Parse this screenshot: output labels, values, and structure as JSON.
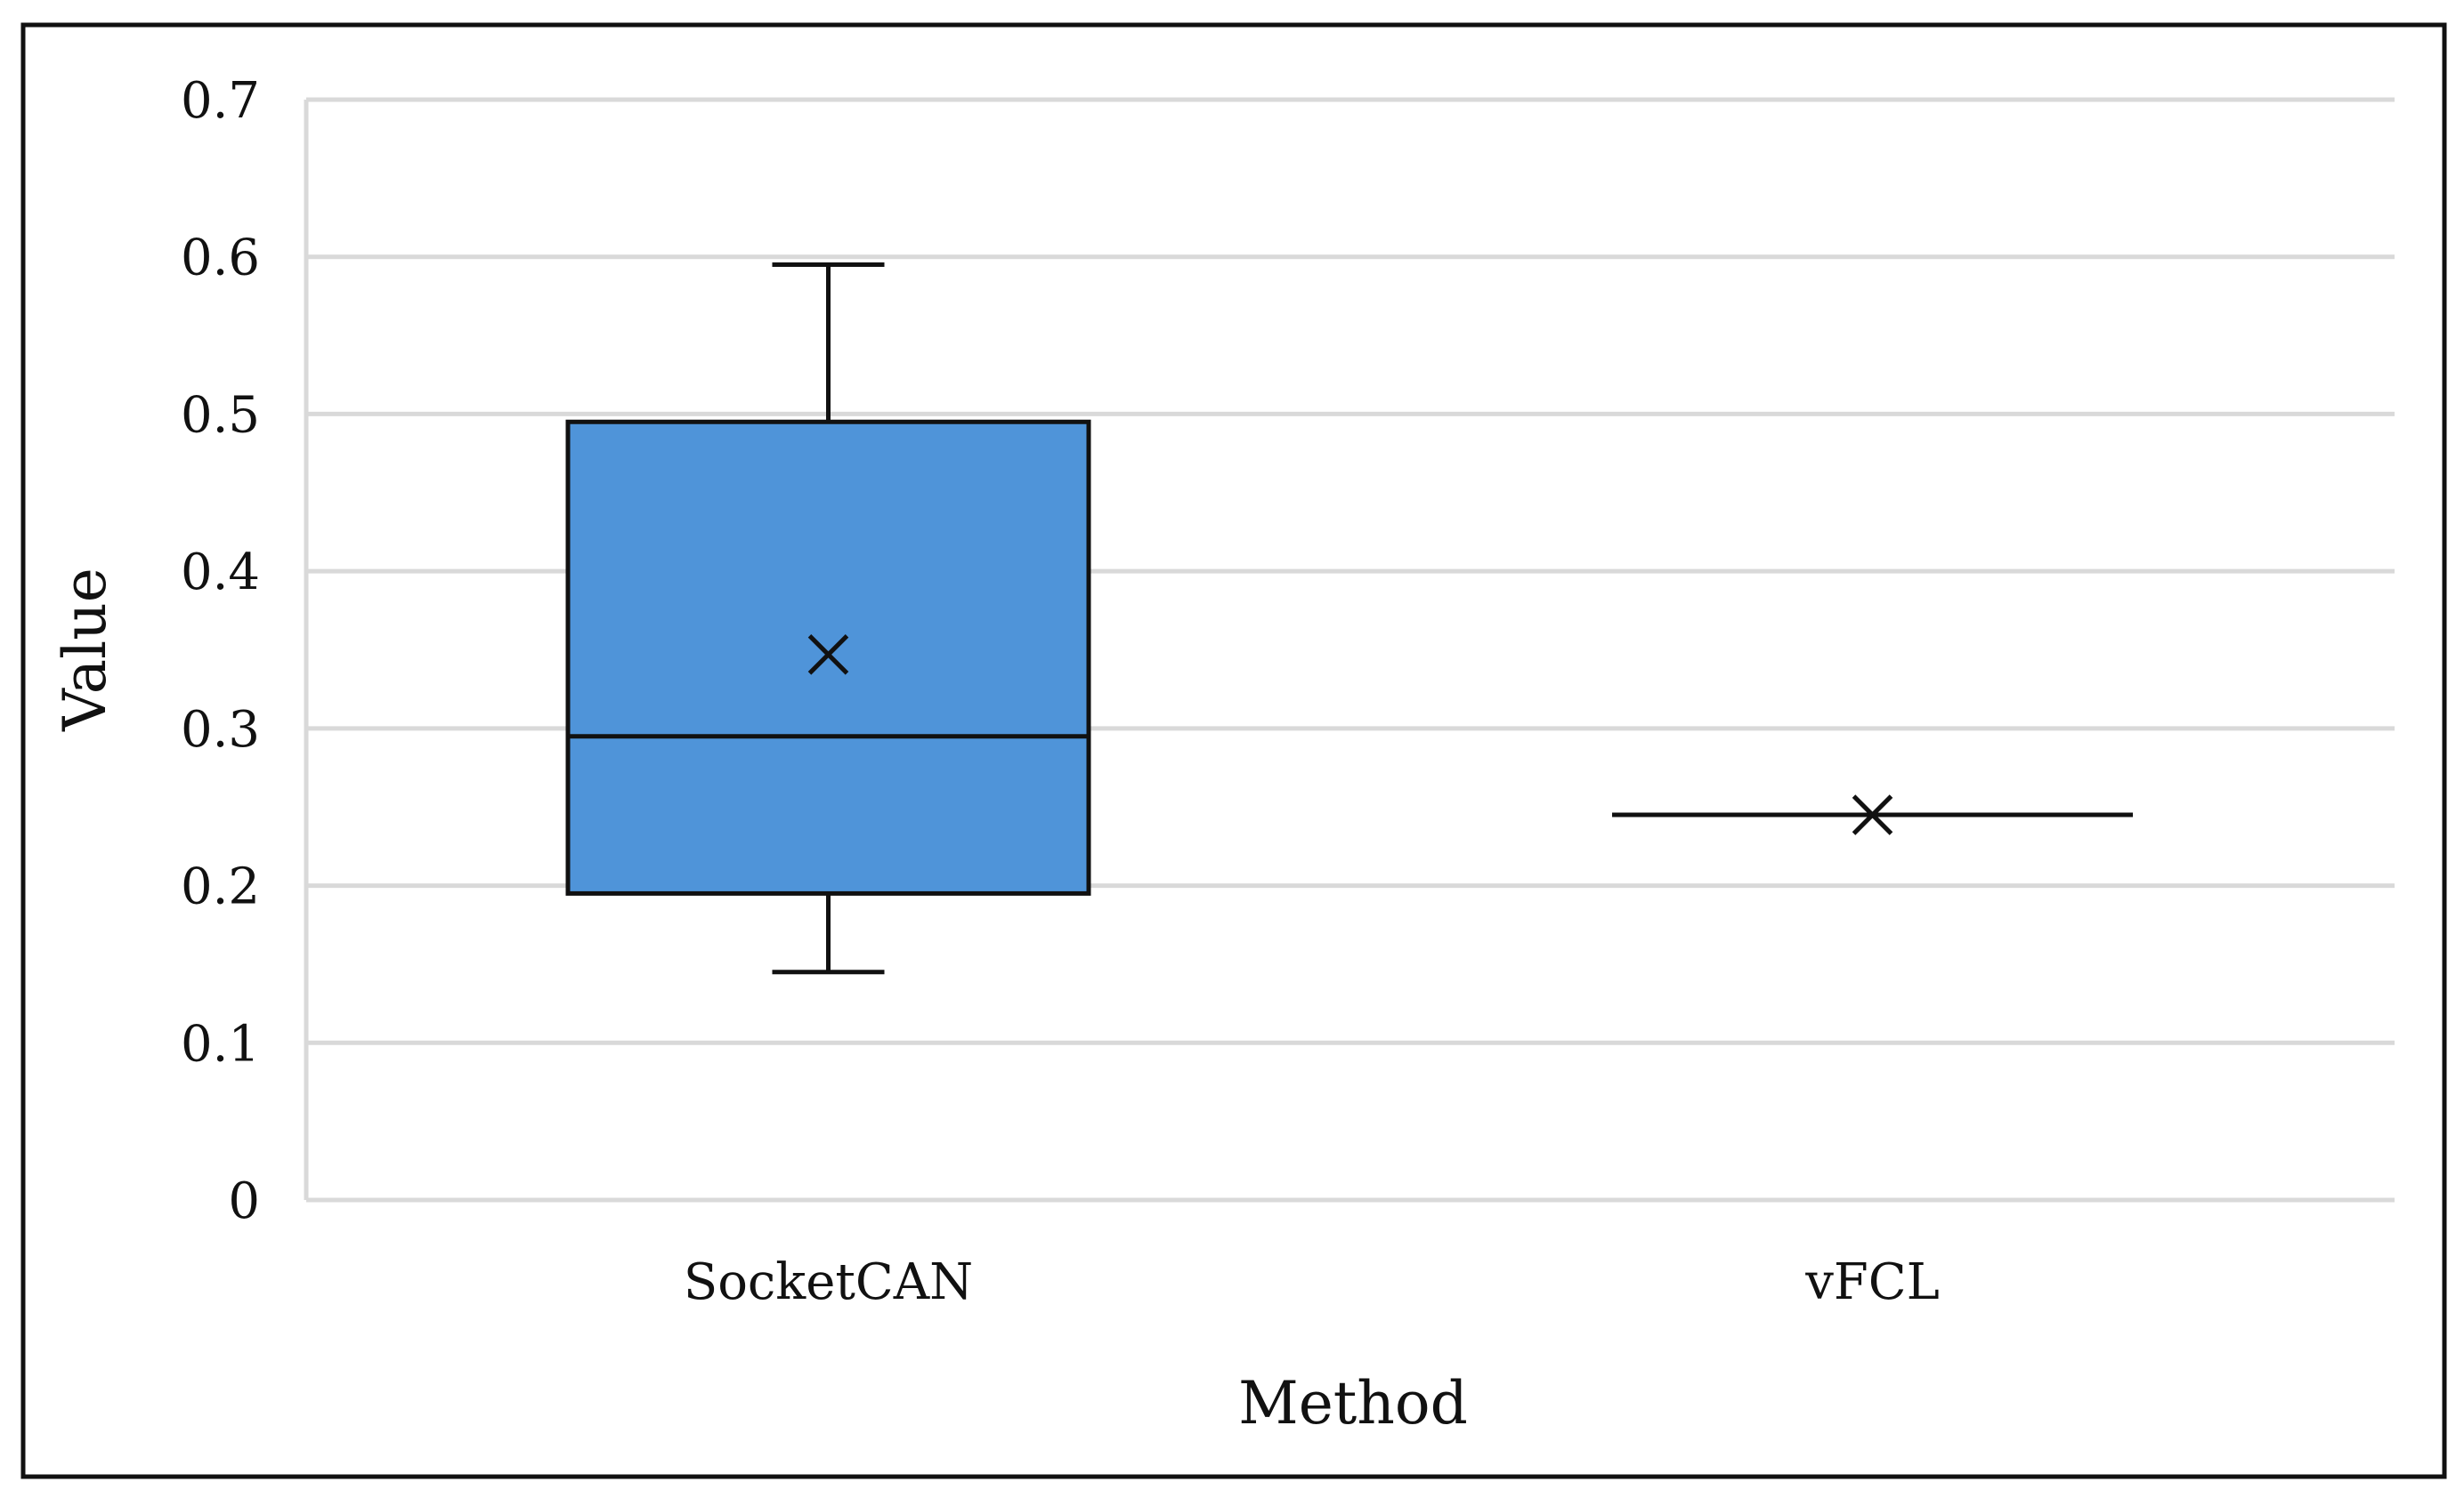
{
  "chart_data": {
    "type": "box",
    "title": "",
    "xlabel": "Method",
    "ylabel": "Value",
    "ylim": [
      0,
      0.7
    ],
    "yticks": [
      0,
      0.1,
      0.2,
      0.3,
      0.4,
      0.5,
      0.6,
      0.7
    ],
    "ytick_labels": [
      "0",
      "0.1",
      "0.2",
      "0.3",
      "0.4",
      "0.5",
      "0.6",
      "0.7"
    ],
    "grid": true,
    "legend": "none",
    "categories": [
      "SocketCAN",
      "vFCL"
    ],
    "series": [
      {
        "category": "SocketCAN",
        "min": 0.145,
        "q1": 0.195,
        "median": 0.295,
        "q3": 0.495,
        "max": 0.595,
        "mean": 0.347,
        "color": "#4F94D9"
      },
      {
        "category": "vFCL",
        "min": 0.245,
        "q1": 0.245,
        "median": 0.245,
        "q3": 0.245,
        "max": 0.245,
        "mean": 0.245,
        "color": "#4F94D9"
      }
    ],
    "colors": {
      "box_fill": "#4F94D9",
      "stroke": "#111111",
      "grid": "#D9D9D9",
      "frame": "#111111"
    }
  }
}
